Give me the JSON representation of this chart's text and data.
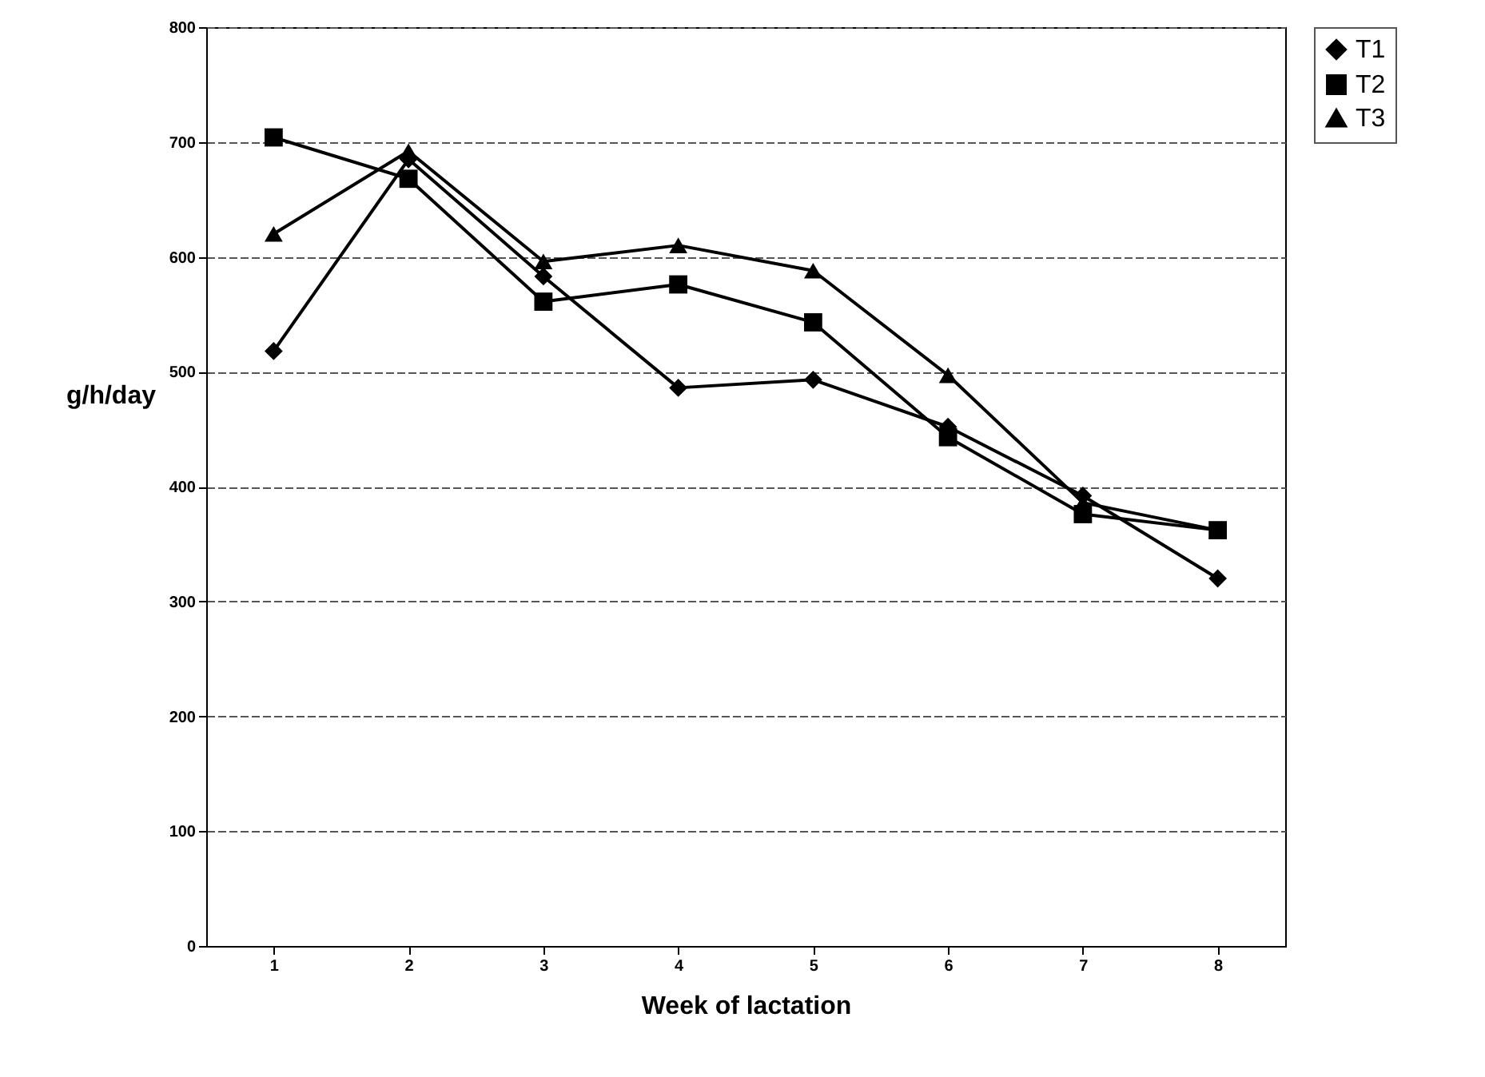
{
  "chart_data": {
    "type": "line",
    "xlabel": "Week of lactation",
    "ylabel": "g/h/day",
    "categories": [
      "1",
      "2",
      "3",
      "4",
      "5",
      "6",
      "7",
      "8"
    ],
    "series": [
      {
        "name": "T1",
        "color": "#000000",
        "marker": "diamond",
        "values": [
          518,
          685,
          583,
          486,
          493,
          452,
          392,
          320
        ]
      },
      {
        "name": "T2",
        "color": "#000000",
        "marker": "square",
        "values": [
          704,
          668,
          561,
          576,
          543,
          443,
          376,
          362
        ]
      },
      {
        "name": "T3",
        "color": "#000000",
        "marker": "triangle",
        "values": [
          620,
          692,
          596,
          610,
          588,
          497,
          386,
          362
        ]
      }
    ],
    "ylim": [
      0,
      800
    ],
    "yticks": [
      0,
      100,
      200,
      300,
      400,
      500,
      600,
      700,
      800
    ],
    "grid": "y",
    "legend": "right",
    "line_style": "solid"
  }
}
